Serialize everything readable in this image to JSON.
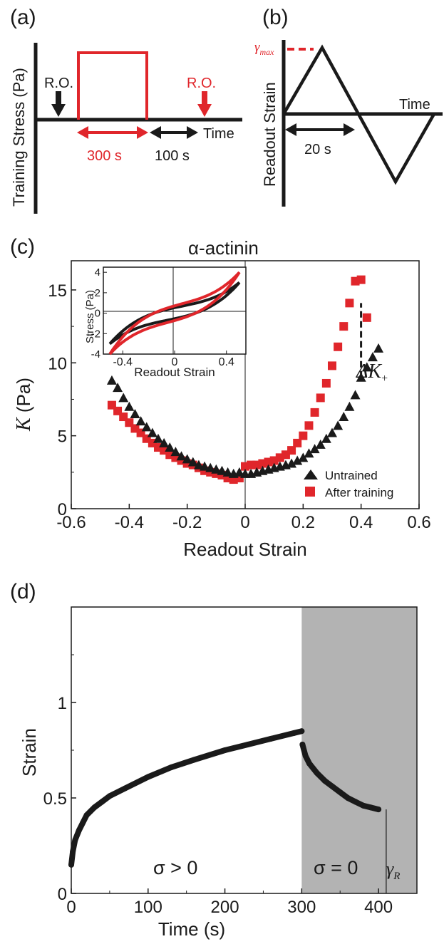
{
  "colors": {
    "black": "#1a1a1a",
    "red": "#e0262b",
    "shade": "#b3b3b3"
  },
  "panel_a": {
    "label": "(a)",
    "ylabel": "Training Stress (Pa)",
    "ro_left": "R.O.",
    "ro_right": "R.O.",
    "time": "Time",
    "duration_red": "300 s",
    "duration_black": "100 s"
  },
  "panel_b": {
    "label": "(b)",
    "ylabel": "Readout Strain",
    "gamma_max": "γ",
    "gamma_max_sub": "max",
    "time": "Time",
    "period": "20 s"
  },
  "panel_c": {
    "label": "(c)",
    "title": "α-actinin",
    "xlabel": "Readout Strain",
    "ylabel_italic": "K",
    "ylabel_unit": " (Pa)",
    "delta_k": "ΔK",
    "delta_k_sub": "+",
    "xticks": [
      "-0.6",
      "-0.4",
      "-0.2",
      "0",
      "0.2",
      "0.4",
      "0.6"
    ],
    "yticks": [
      "0",
      "5",
      "10",
      "15"
    ],
    "inset": {
      "xlabel": "Readout Strain",
      "ylabel": "Stress (Pa)",
      "xticks": [
        "-0.4",
        "0",
        "0.4"
      ],
      "yticks": [
        "-4",
        "-2",
        "0",
        "2",
        "4"
      ]
    }
  },
  "panel_d": {
    "label": "(d)",
    "xlabel": "Time (s)",
    "ylabel": "Strain",
    "xticks": [
      "0",
      "100",
      "200",
      "300",
      "400"
    ],
    "yticks": [
      "0",
      "0.5",
      "1"
    ],
    "region_left": "σ > 0",
    "region_right": "σ = 0",
    "gamma_r": "γ",
    "gamma_r_sub": "R"
  },
  "chart_data": [
    {
      "type": "scatter",
      "panel": "c",
      "title": "α-actinin",
      "xlabel": "Readout Strain",
      "ylabel": "K (Pa)",
      "xlim": [
        -0.6,
        0.6
      ],
      "ylim": [
        0,
        17
      ],
      "legend": "bottom-right",
      "series": [
        {
          "name": "Untrained",
          "marker": "triangle",
          "color": "#1a1a1a",
          "points": [
            [
              -0.46,
              8.8
            ],
            [
              -0.44,
              8.3
            ],
            [
              -0.42,
              7.6
            ],
            [
              -0.4,
              7.0
            ],
            [
              -0.38,
              6.5
            ],
            [
              -0.36,
              6.0
            ],
            [
              -0.34,
              5.6
            ],
            [
              -0.32,
              5.2
            ],
            [
              -0.3,
              4.8
            ],
            [
              -0.28,
              4.5
            ],
            [
              -0.26,
              4.2
            ],
            [
              -0.24,
              3.9
            ],
            [
              -0.22,
              3.6
            ],
            [
              -0.2,
              3.4
            ],
            [
              -0.18,
              3.2
            ],
            [
              -0.16,
              3.0
            ],
            [
              -0.14,
              2.9
            ],
            [
              -0.12,
              2.8
            ],
            [
              -0.1,
              2.7
            ],
            [
              -0.08,
              2.6
            ],
            [
              -0.06,
              2.5
            ],
            [
              -0.04,
              2.4
            ],
            [
              -0.02,
              2.5
            ],
            [
              0.0,
              2.4
            ],
            [
              0.02,
              2.4
            ],
            [
              0.04,
              2.5
            ],
            [
              0.06,
              2.6
            ],
            [
              0.08,
              2.7
            ],
            [
              0.1,
              2.8
            ],
            [
              0.12,
              2.9
            ],
            [
              0.14,
              3.0
            ],
            [
              0.16,
              3.1
            ],
            [
              0.18,
              3.3
            ],
            [
              0.2,
              3.5
            ],
            [
              0.22,
              3.8
            ],
            [
              0.24,
              4.1
            ],
            [
              0.26,
              4.4
            ],
            [
              0.28,
              4.8
            ],
            [
              0.3,
              5.2
            ],
            [
              0.32,
              5.7
            ],
            [
              0.34,
              6.3
            ],
            [
              0.36,
              7.0
            ],
            [
              0.38,
              7.8
            ],
            [
              0.4,
              9.0
            ],
            [
              0.42,
              9.7
            ],
            [
              0.44,
              10.4
            ],
            [
              0.46,
              11.0
            ]
          ]
        },
        {
          "name": "After training",
          "marker": "square",
          "color": "#e0262b",
          "points": [
            [
              -0.46,
              7.1
            ],
            [
              -0.44,
              6.7
            ],
            [
              -0.42,
              6.3
            ],
            [
              -0.4,
              5.9
            ],
            [
              -0.38,
              5.5
            ],
            [
              -0.36,
              5.2
            ],
            [
              -0.34,
              4.8
            ],
            [
              -0.32,
              4.5
            ],
            [
              -0.3,
              4.2
            ],
            [
              -0.28,
              4.0
            ],
            [
              -0.26,
              3.7
            ],
            [
              -0.24,
              3.5
            ],
            [
              -0.22,
              3.3
            ],
            [
              -0.2,
              3.1
            ],
            [
              -0.18,
              3.0
            ],
            [
              -0.16,
              2.8
            ],
            [
              -0.14,
              2.6
            ],
            [
              -0.12,
              2.5
            ],
            [
              -0.1,
              2.4
            ],
            [
              -0.08,
              2.3
            ],
            [
              -0.06,
              2.1
            ],
            [
              -0.04,
              2.0
            ],
            [
              -0.02,
              2.1
            ],
            [
              0.0,
              2.9
            ],
            [
              0.02,
              3.0
            ],
            [
              0.04,
              3.0
            ],
            [
              0.06,
              3.1
            ],
            [
              0.08,
              3.2
            ],
            [
              0.1,
              3.3
            ],
            [
              0.12,
              3.5
            ],
            [
              0.14,
              3.7
            ],
            [
              0.16,
              4.0
            ],
            [
              0.18,
              4.5
            ],
            [
              0.2,
              5.0
            ],
            [
              0.22,
              5.7
            ],
            [
              0.24,
              6.6
            ],
            [
              0.26,
              7.6
            ],
            [
              0.28,
              8.6
            ],
            [
              0.3,
              9.8
            ],
            [
              0.32,
              11.1
            ],
            [
              0.34,
              12.5
            ],
            [
              0.36,
              14.1
            ],
            [
              0.38,
              15.6
            ],
            [
              0.4,
              15.7
            ],
            [
              0.42,
              13.1
            ]
          ]
        }
      ],
      "annotation": {
        "text": "ΔK+",
        "x": 0.39,
        "y_from": 9.0,
        "y_to": 14.1
      }
    },
    {
      "type": "line",
      "panel": "c-inset",
      "xlabel": "Readout Strain",
      "ylabel": "Stress (Pa)",
      "xlim": [
        -0.55,
        0.55
      ],
      "ylim": [
        -4,
        4.5
      ],
      "series": [
        {
          "name": "Untrained",
          "color": "#1a1a1a",
          "amplitude": 3.0
        },
        {
          "name": "After training",
          "color": "#e0262b",
          "amplitude": 4.0
        }
      ]
    },
    {
      "type": "scatter",
      "panel": "d",
      "xlabel": "Time (s)",
      "ylabel": "Strain",
      "xlim": [
        0,
        450
      ],
      "ylim": [
        0,
        1.5
      ],
      "shaded_region": [
        300,
        450
      ],
      "series": [
        {
          "name": "",
          "color": "#1a1a1a",
          "points": [
            [
              0,
              0.15
            ],
            [
              2,
              0.22
            ],
            [
              5,
              0.28
            ],
            [
              10,
              0.33
            ],
            [
              15,
              0.37
            ],
            [
              20,
              0.41
            ],
            [
              30,
              0.45
            ],
            [
              40,
              0.48
            ],
            [
              50,
              0.51
            ],
            [
              70,
              0.55
            ],
            [
              100,
              0.61
            ],
            [
              130,
              0.66
            ],
            [
              160,
              0.7
            ],
            [
              200,
              0.75
            ],
            [
              230,
              0.78
            ],
            [
              260,
              0.81
            ],
            [
              290,
              0.84
            ],
            [
              300,
              0.85
            ],
            [
              301,
              0.78
            ],
            [
              305,
              0.72
            ],
            [
              310,
              0.68
            ],
            [
              320,
              0.63
            ],
            [
              330,
              0.59
            ],
            [
              340,
              0.56
            ],
            [
              350,
              0.53
            ],
            [
              360,
              0.5
            ],
            [
              370,
              0.48
            ],
            [
              380,
              0.46
            ],
            [
              390,
              0.45
            ],
            [
              400,
              0.44
            ]
          ]
        }
      ],
      "gamma_r_marker_x": 410
    }
  ]
}
